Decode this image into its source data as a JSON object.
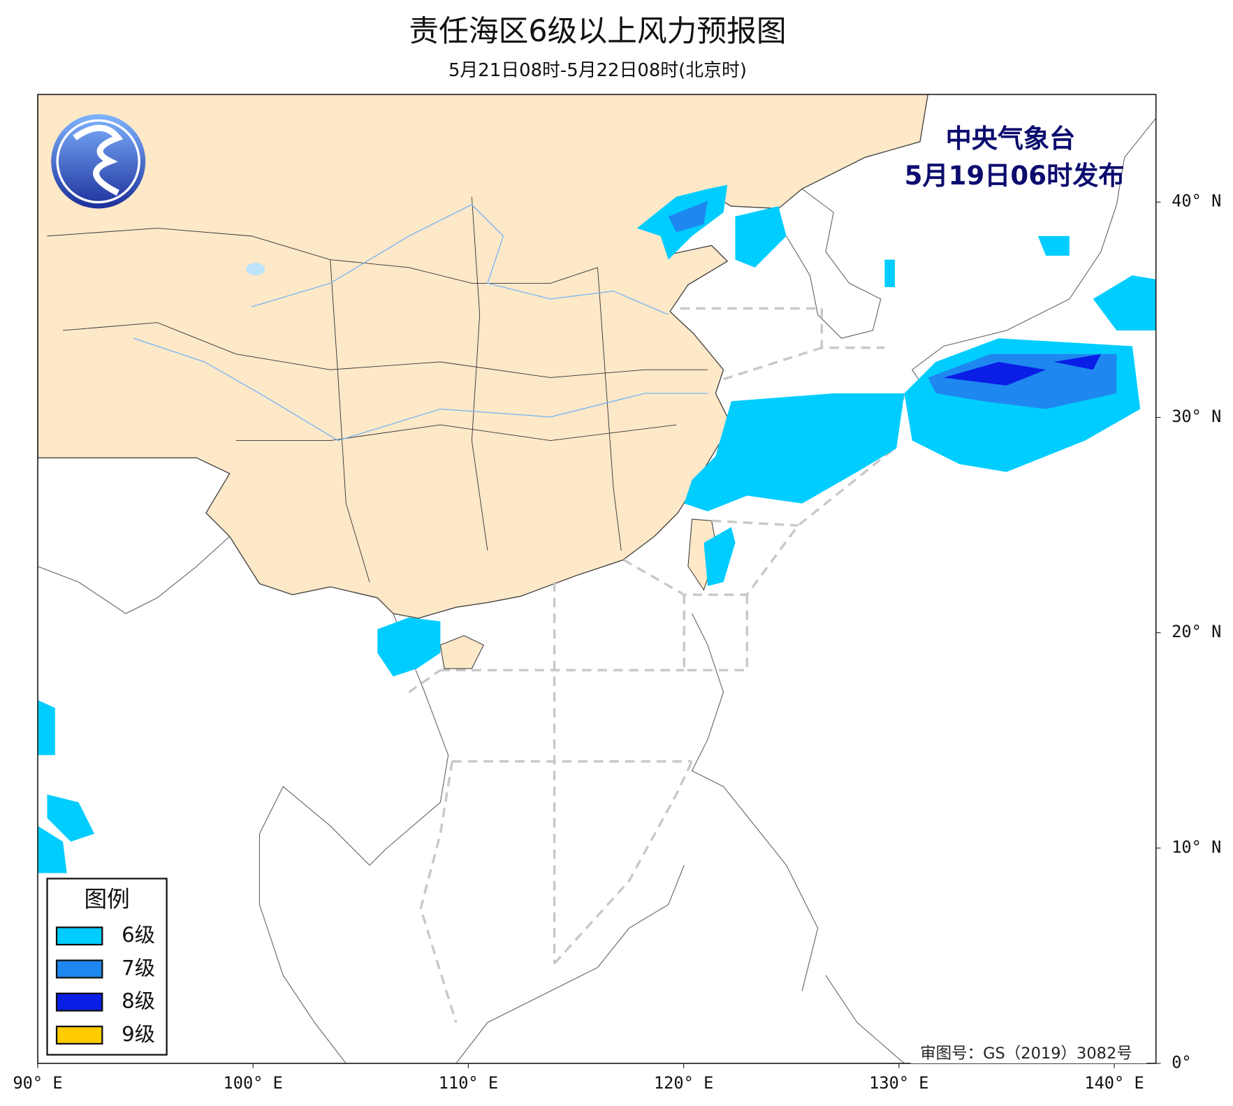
{
  "title": "责任海区6级以上风力预报图",
  "subtitle": "5月21日08时-5月22日08时(北京时)",
  "publisher": "中央气象台",
  "issued": "5月19日06时发布",
  "legend": {
    "title": "图例",
    "items": [
      {
        "label": "6级",
        "color": "#00cdff"
      },
      {
        "label": "7级",
        "color": "#1e88f0"
      },
      {
        "label": "8级",
        "color": "#0a1ee6"
      },
      {
        "label": "9级",
        "color": "#ffcc00"
      }
    ]
  },
  "map_approval": "审图号：GS（2019）3082号",
  "axes": {
    "x_labels": [
      "90° E",
      "100° E",
      "110° E",
      "120° E",
      "130° E",
      "140° E"
    ],
    "y_labels": [
      "40° N",
      "30° N",
      "20° N",
      "10° N",
      "0°"
    ]
  }
}
